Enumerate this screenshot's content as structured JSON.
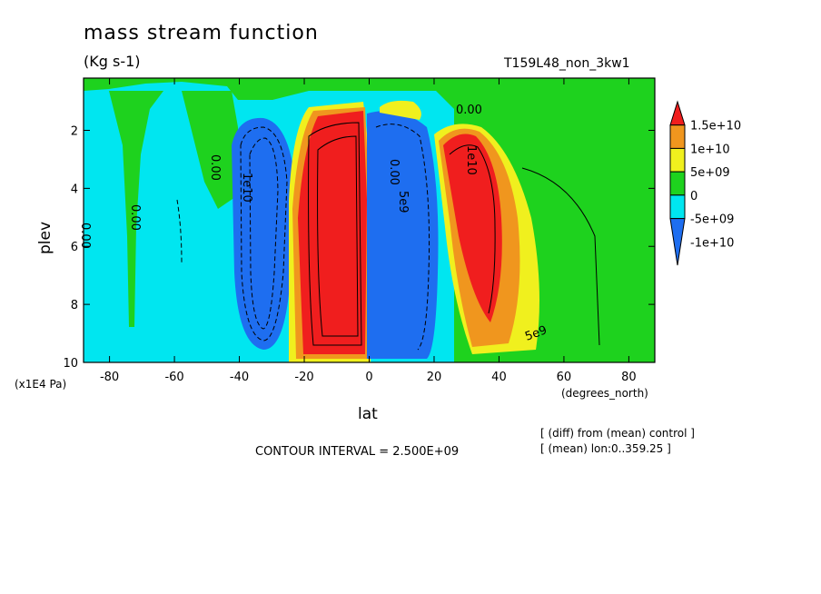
{
  "header": {
    "title": "mass stream function",
    "units": "(Kg s-1)",
    "run_label": "T159L48_non_3kw1"
  },
  "footer": {
    "contour_interval": "CONTOUR INTERVAL = 2.500E+09",
    "note1": "[ (diff) from (mean) control ]",
    "note2": "[ (mean) lon:0..359.25 ]"
  },
  "colors": {
    "red": "#f01e1e",
    "orange": "#f0961e",
    "yellow": "#f0f01e",
    "green": "#1ed21e",
    "cyan": "#00e6f0",
    "blue": "#1e6ef0"
  },
  "chart_data": {
    "type": "heatmap",
    "title": "mass stream function",
    "units": "(Kg s-1)",
    "xlabel": "lat",
    "ylabel": "plev",
    "x_unit_label": "(degrees_north)",
    "y_unit_label": "(x1E4 Pa)",
    "xlim": [
      -88,
      88
    ],
    "ylim": [
      10,
      0.2
    ],
    "xticks": [
      -80,
      -60,
      -40,
      -20,
      0,
      20,
      40,
      60,
      80
    ],
    "yticks": [
      2,
      4,
      6,
      8,
      10
    ],
    "colorbar": {
      "levels": [
        "1.5e+10",
        "1e+10",
        "5e+09",
        "0",
        "-5e+09",
        "-1e+10"
      ],
      "colors": [
        "#f01e1e",
        "#f0961e",
        "#f0f01e",
        "#1ed21e",
        "#00e6f0",
        "#1e6ef0"
      ]
    },
    "cells": [
      {
        "sign": "positive",
        "lat_center": -6,
        "plev_top": 2,
        "plev_bottom": 9.7,
        "peak": ">1.5e+10"
      },
      {
        "sign": "negative",
        "lat_center": 6,
        "plev_top": 2,
        "plev_bottom": 9.7,
        "peak": "<-1e+10"
      },
      {
        "sign": "positive",
        "lat_center": 32,
        "plev_top": 2,
        "plev_bottom": 9.2,
        "peak": ">1.5e+10"
      },
      {
        "sign": "negative",
        "lat_center": -33,
        "plev_top": 2,
        "plev_bottom": 9,
        "peak": "-1e+10"
      }
    ],
    "contour_labels": [
      "0.00",
      "0.00",
      "0.00",
      "0.00",
      "0.00",
      "5e9",
      "1e10",
      "1e10",
      "5e9"
    ]
  }
}
